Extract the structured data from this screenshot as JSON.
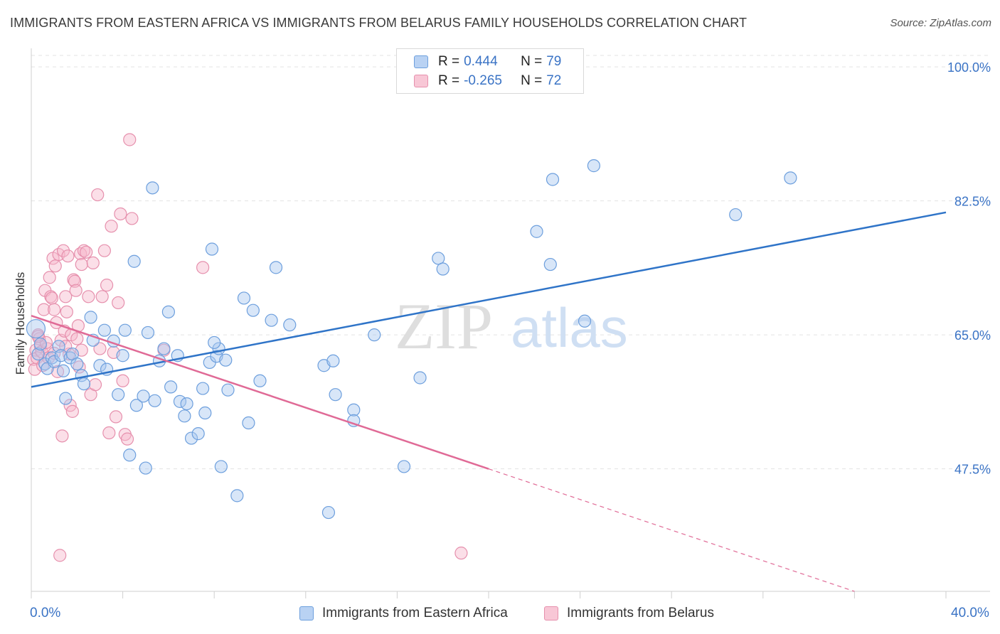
{
  "title": "IMMIGRANTS FROM EASTERN AFRICA VS IMMIGRANTS FROM BELARUS FAMILY HOUSEHOLDS CORRELATION CHART",
  "source": "Source: ZipAtlas.com",
  "watermark": {
    "zip": "ZIP",
    "atlas": "atlas"
  },
  "legend": {
    "series1": {
      "r_label": "R =",
      "r_value": "0.444",
      "n_label": "N =",
      "n_value": "79"
    },
    "series2": {
      "r_label": "R =",
      "r_value": "-0.265",
      "n_label": "N =",
      "n_value": "72"
    }
  },
  "colors": {
    "series1_fill": "#a9c8f0",
    "series1_stroke": "#6d9fdd",
    "series1_line": "#2f74c8",
    "series2_fill": "#f6b9cb",
    "series2_stroke": "#e690ad",
    "series2_line": "#e06a96",
    "axis_text": "#3a73c5",
    "grid": "#e3e3e3"
  },
  "chart_data": {
    "type": "scatter",
    "title": "IMMIGRANTS FROM EASTERN AFRICA VS IMMIGRANTS FROM BELARUS FAMILY HOUSEHOLDS CORRELATION CHART",
    "xlabel": "",
    "ylabel": "Family Households",
    "xlim": [
      0,
      40
    ],
    "ylim": [
      31.5,
      101.5
    ],
    "x_tick_labels": [
      "0.0%",
      "40.0%"
    ],
    "y_ticks": [
      47.5,
      65.0,
      82.5,
      100.0
    ],
    "y_tick_labels": [
      "47.5%",
      "65.0%",
      "82.5%",
      "100.0%"
    ],
    "grid": true,
    "legend_position": "bottom",
    "series": [
      {
        "name": "Immigrants from Eastern Africa",
        "color": "#a9c8f0",
        "trend": {
          "x": [
            0,
            40
          ],
          "y": [
            58.2,
            81.0
          ]
        },
        "points": [
          [
            0.2,
            65.8
          ],
          [
            0.3,
            62.5
          ],
          [
            0.4,
            63.8
          ],
          [
            0.6,
            61.2
          ],
          [
            0.7,
            60.6
          ],
          [
            0.9,
            62.0
          ],
          [
            1.0,
            61.5
          ],
          [
            1.2,
            63.5
          ],
          [
            1.3,
            62.3
          ],
          [
            1.4,
            60.3
          ],
          [
            1.5,
            56.7
          ],
          [
            1.7,
            62.0
          ],
          [
            1.8,
            62.5
          ],
          [
            2.0,
            61.2
          ],
          [
            2.2,
            59.7
          ],
          [
            2.3,
            58.6
          ],
          [
            2.6,
            67.3
          ],
          [
            2.7,
            64.3
          ],
          [
            3.0,
            61.0
          ],
          [
            3.2,
            65.6
          ],
          [
            3.3,
            60.5
          ],
          [
            3.6,
            64.2
          ],
          [
            3.8,
            57.2
          ],
          [
            4.0,
            62.3
          ],
          [
            4.1,
            65.6
          ],
          [
            4.3,
            49.3
          ],
          [
            4.5,
            74.6
          ],
          [
            4.6,
            55.8
          ],
          [
            4.9,
            57.0
          ],
          [
            5.0,
            47.6
          ],
          [
            5.1,
            65.3
          ],
          [
            5.3,
            84.2
          ],
          [
            5.4,
            56.4
          ],
          [
            5.6,
            61.6
          ],
          [
            5.8,
            63.2
          ],
          [
            6.0,
            68.0
          ],
          [
            6.1,
            58.2
          ],
          [
            6.4,
            62.3
          ],
          [
            6.5,
            56.3
          ],
          [
            6.7,
            54.4
          ],
          [
            6.8,
            56.0
          ],
          [
            7.0,
            51.5
          ],
          [
            7.3,
            52.1
          ],
          [
            7.5,
            58.0
          ],
          [
            7.6,
            54.8
          ],
          [
            7.8,
            61.4
          ],
          [
            7.9,
            76.2
          ],
          [
            8.1,
            62.2
          ],
          [
            8.2,
            63.2
          ],
          [
            8.3,
            47.8
          ],
          [
            8.5,
            61.7
          ],
          [
            8.6,
            57.8
          ],
          [
            9.0,
            44.0
          ],
          [
            9.3,
            69.8
          ],
          [
            9.5,
            53.5
          ],
          [
            9.7,
            68.2
          ],
          [
            10.0,
            59.0
          ],
          [
            10.5,
            66.9
          ],
          [
            10.7,
            73.8
          ],
          [
            11.3,
            66.3
          ],
          [
            12.8,
            61.0
          ],
          [
            13.0,
            41.8
          ],
          [
            13.2,
            61.6
          ],
          [
            13.3,
            57.2
          ],
          [
            14.1,
            55.2
          ],
          [
            14.1,
            53.8
          ],
          [
            15.0,
            65.0
          ],
          [
            16.3,
            47.8
          ],
          [
            17.0,
            59.4
          ],
          [
            17.8,
            75.0
          ],
          [
            18.0,
            73.6
          ],
          [
            22.1,
            78.5
          ],
          [
            22.7,
            74.2
          ],
          [
            22.8,
            85.3
          ],
          [
            24.2,
            66.8
          ],
          [
            24.6,
            87.1
          ],
          [
            30.8,
            80.7
          ],
          [
            33.2,
            85.5
          ],
          [
            8.0,
            64.0
          ]
        ]
      },
      {
        "name": "Immigrants from Belarus",
        "color": "#f6b9cb",
        "trend": {
          "x": [
            0,
            20
          ],
          "y": [
            67.5,
            47.5
          ]
        },
        "points": [
          [
            0.1,
            61.8
          ],
          [
            0.15,
            60.5
          ],
          [
            0.2,
            63.0
          ],
          [
            0.25,
            62.0
          ],
          [
            0.3,
            65.0
          ],
          [
            0.35,
            64.5
          ],
          [
            0.4,
            63.5
          ],
          [
            0.45,
            62.8
          ],
          [
            0.5,
            61.0
          ],
          [
            0.55,
            68.3
          ],
          [
            0.6,
            70.8
          ],
          [
            0.7,
            63.2
          ],
          [
            0.75,
            62.0
          ],
          [
            0.8,
            72.5
          ],
          [
            0.85,
            70.0
          ],
          [
            0.9,
            69.8
          ],
          [
            0.95,
            75.0
          ],
          [
            1.0,
            68.3
          ],
          [
            1.05,
            74.0
          ],
          [
            1.1,
            66.6
          ],
          [
            1.15,
            60.2
          ],
          [
            1.2,
            75.5
          ],
          [
            1.3,
            64.3
          ],
          [
            1.35,
            51.8
          ],
          [
            1.4,
            76.0
          ],
          [
            1.45,
            65.5
          ],
          [
            1.5,
            70.0
          ],
          [
            1.55,
            68.0
          ],
          [
            1.6,
            75.3
          ],
          [
            1.65,
            62.5
          ],
          [
            1.7,
            55.8
          ],
          [
            1.75,
            65.0
          ],
          [
            1.8,
            55.0
          ],
          [
            1.85,
            72.2
          ],
          [
            1.9,
            72.0
          ],
          [
            1.95,
            70.8
          ],
          [
            2.0,
            64.5
          ],
          [
            2.05,
            66.2
          ],
          [
            2.1,
            60.8
          ],
          [
            2.15,
            75.6
          ],
          [
            2.2,
            74.2
          ],
          [
            2.3,
            76.0
          ],
          [
            2.4,
            75.8
          ],
          [
            2.5,
            70.0
          ],
          [
            2.6,
            57.2
          ],
          [
            2.7,
            74.4
          ],
          [
            2.8,
            58.5
          ],
          [
            2.9,
            83.3
          ],
          [
            3.0,
            63.2
          ],
          [
            3.1,
            70.0
          ],
          [
            3.2,
            76.0
          ],
          [
            3.3,
            71.5
          ],
          [
            3.4,
            52.2
          ],
          [
            3.5,
            79.2
          ],
          [
            3.6,
            62.7
          ],
          [
            3.7,
            54.3
          ],
          [
            3.8,
            69.2
          ],
          [
            3.9,
            80.8
          ],
          [
            4.0,
            59.0
          ],
          [
            4.1,
            52.0
          ],
          [
            4.2,
            51.4
          ],
          [
            4.3,
            90.5
          ],
          [
            4.4,
            80.2
          ],
          [
            5.8,
            63.0
          ],
          [
            7.5,
            73.8
          ],
          [
            1.25,
            36.2
          ],
          [
            18.8,
            36.5
          ],
          [
            0.65,
            64.0
          ],
          [
            1.0,
            62.6
          ],
          [
            1.5,
            63.5
          ],
          [
            2.2,
            63.0
          ],
          [
            0.3,
            64.8
          ]
        ]
      }
    ]
  },
  "bottom_legend": {
    "item1": "Immigrants from Eastern Africa",
    "item2": "Immigrants from Belarus"
  }
}
